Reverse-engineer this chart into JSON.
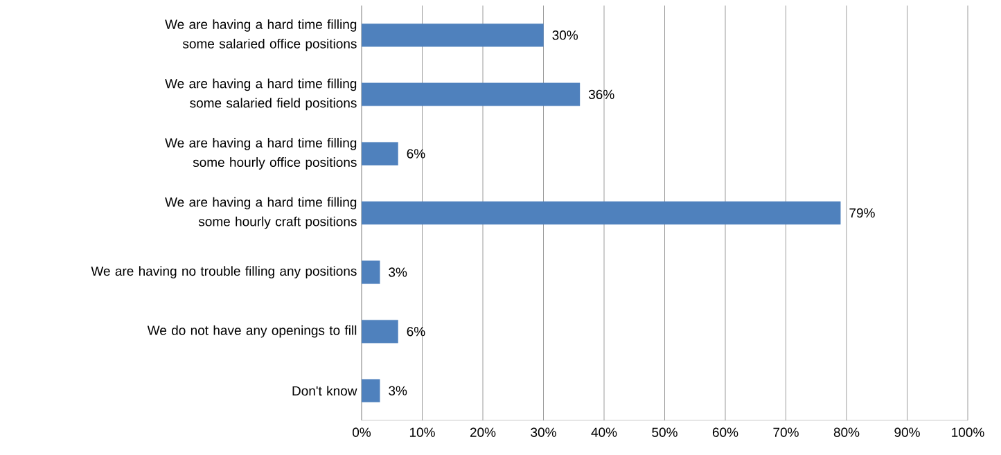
{
  "chart_data": {
    "type": "bar",
    "orientation": "horizontal",
    "categories": [
      "We are having a hard time filling some salaried office positions",
      "We are having a hard time filling some salaried field positions",
      "We are having a hard time filling some hourly office positions",
      "We are having a hard time filling some hourly craft positions",
      "We are having no trouble filling any positions",
      "We do not have any openings to fill",
      "Don't know"
    ],
    "values": [
      30,
      36,
      6,
      79,
      3,
      6,
      3
    ],
    "value_labels": [
      "30%",
      "36%",
      "6%",
      "79%",
      "3%",
      "6%",
      "3%"
    ],
    "color": "#4f81bd",
    "xlim": [
      0,
      100
    ],
    "xticks": [
      {
        "value": 0,
        "label": "0%"
      },
      {
        "value": 10,
        "label": "10%"
      },
      {
        "value": 20,
        "label": "20%"
      },
      {
        "value": 30,
        "label": "30%"
      },
      {
        "value": 40,
        "label": "40%"
      },
      {
        "value": 50,
        "label": "50%"
      },
      {
        "value": 60,
        "label": "60%"
      },
      {
        "value": 70,
        "label": "70%"
      },
      {
        "value": 80,
        "label": "80%"
      },
      {
        "value": 90,
        "label": "90%"
      },
      {
        "value": 100,
        "label": "100%"
      }
    ],
    "grid": "x"
  }
}
